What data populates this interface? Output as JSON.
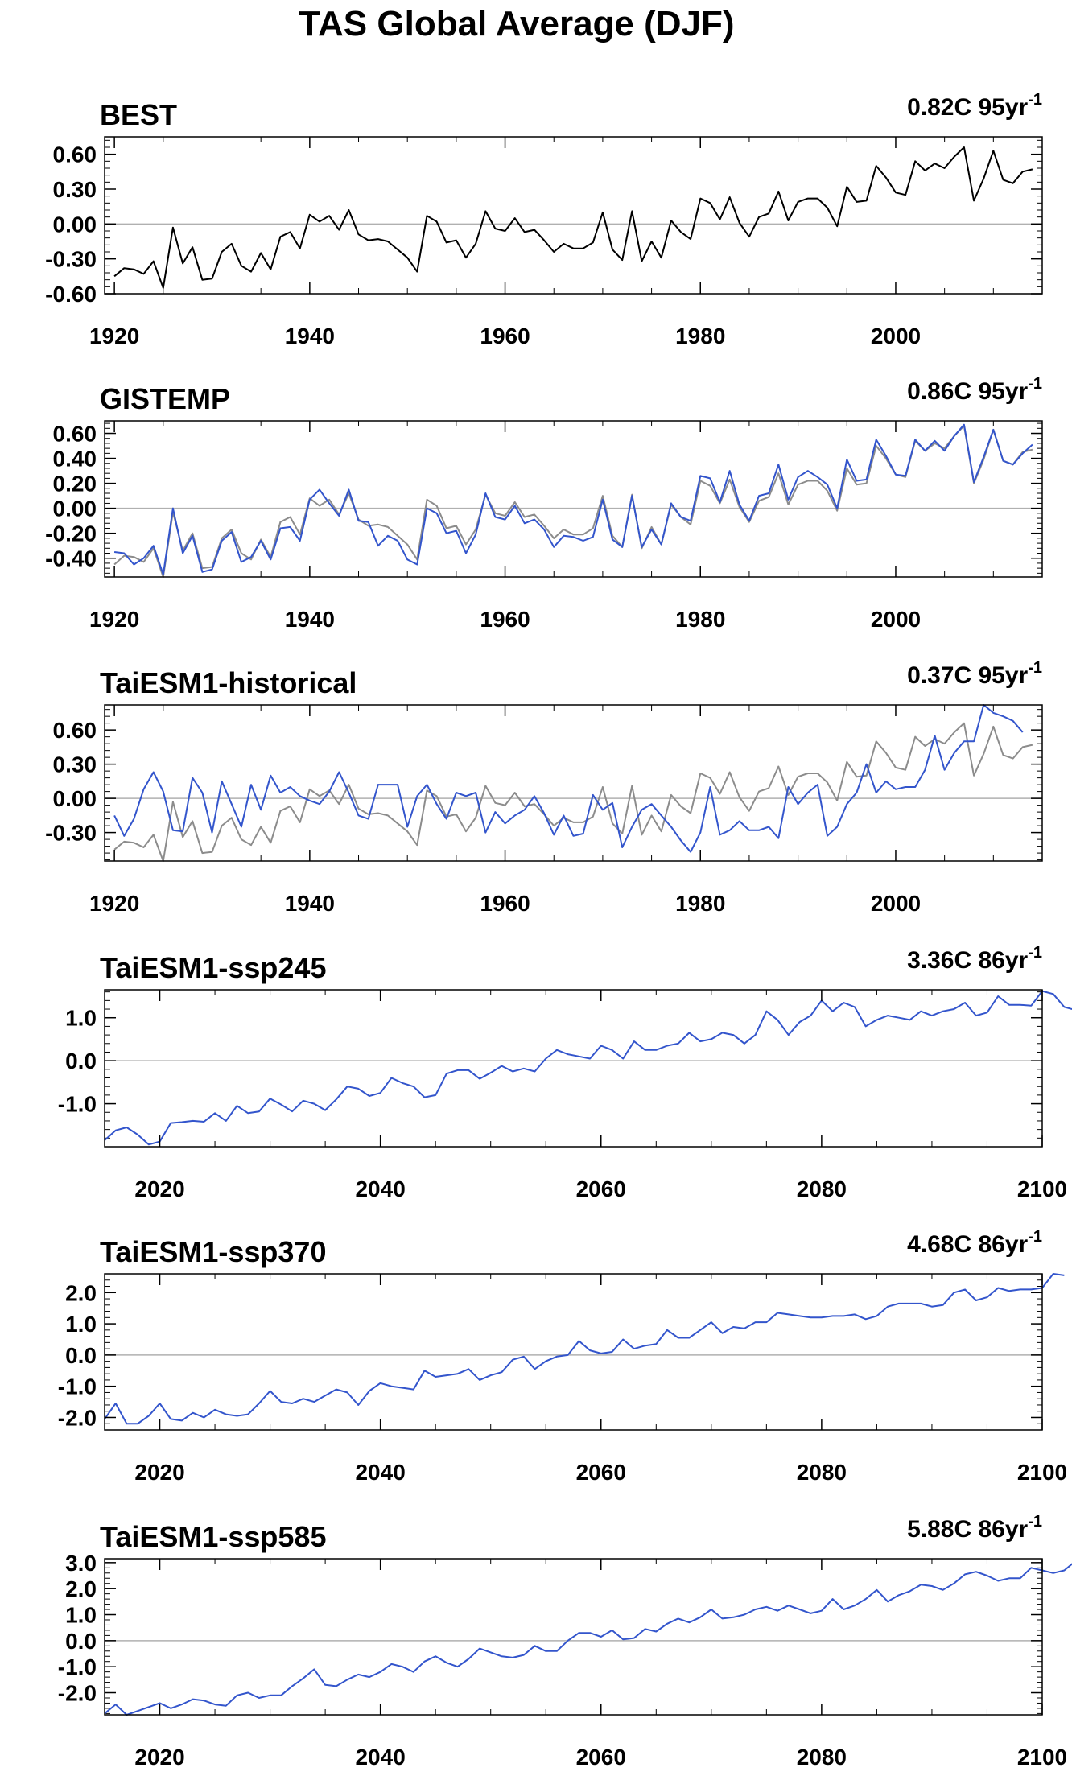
{
  "figure_title": "TAS Global Average (DJF)",
  "colors": {
    "observed": "#000000",
    "obs_background": "#8c8c8c",
    "model": "#3355cc",
    "zero_line": "#b0b0b0",
    "frame": "#000000"
  },
  "chart_data": [
    {
      "type": "line",
      "title": "BEST",
      "trend_text": "0.82C 95yr",
      "trend_exp": "-1",
      "xlabel": "",
      "ylabel": "",
      "xlim": [
        1919,
        2015
      ],
      "ylim": [
        -0.6,
        0.75
      ],
      "xticks": [
        1920,
        1940,
        1960,
        1980,
        2000
      ],
      "yticks": [
        0.6,
        0.3,
        0.0,
        -0.3,
        -0.6
      ],
      "ytick_labels": [
        "0.60",
        "0.30",
        "0.00",
        "-0.30",
        "-0.60"
      ],
      "x_start": 1920,
      "grid": false,
      "series": [
        {
          "color": "#000000",
          "values": [
            -0.45,
            -0.38,
            -0.39,
            -0.43,
            -0.32,
            -0.55,
            -0.03,
            -0.34,
            -0.2,
            -0.48,
            -0.47,
            -0.24,
            -0.17,
            -0.36,
            -0.41,
            -0.25,
            -0.39,
            -0.11,
            -0.07,
            -0.21,
            0.08,
            0.02,
            0.07,
            -0.05,
            0.12,
            -0.09,
            -0.14,
            -0.13,
            -0.15,
            -0.22,
            -0.29,
            -0.41,
            0.07,
            0.02,
            -0.16,
            -0.14,
            -0.29,
            -0.17,
            0.11,
            -0.04,
            -0.06,
            0.05,
            -0.07,
            -0.05,
            -0.14,
            -0.24,
            -0.17,
            -0.21,
            -0.21,
            -0.16,
            0.1,
            -0.22,
            -0.31,
            0.11,
            -0.32,
            -0.15,
            -0.29,
            0.03,
            -0.07,
            -0.13,
            0.22,
            0.18,
            0.04,
            0.23,
            0.01,
            -0.11,
            0.06,
            0.09,
            0.28,
            0.03,
            0.19,
            0.22,
            0.22,
            0.14,
            -0.02,
            0.32,
            0.19,
            0.2,
            0.5,
            0.4,
            0.27,
            0.25,
            0.54,
            0.46,
            0.52,
            0.48,
            0.58,
            0.66,
            0.2,
            0.39,
            0.63,
            0.38,
            0.35,
            0.45,
            0.47
          ]
        }
      ]
    },
    {
      "type": "line",
      "title": "GISTEMP",
      "trend_text": "0.86C 95yr",
      "trend_exp": "-1",
      "xlabel": "",
      "ylabel": "",
      "xlim": [
        1919,
        2015
      ],
      "ylim": [
        -0.55,
        0.7
      ],
      "xticks": [
        1920,
        1940,
        1960,
        1980,
        2000
      ],
      "yticks": [
        0.6,
        0.4,
        0.2,
        0.0,
        -0.2,
        -0.4
      ],
      "ytick_labels": [
        "0.60",
        "0.40",
        "0.20",
        "0.00",
        "-0.20",
        "-0.40"
      ],
      "x_start": 1920,
      "grid": false,
      "series": [
        {
          "color": "#8c8c8c",
          "values": [
            -0.45,
            -0.38,
            -0.39,
            -0.43,
            -0.32,
            -0.55,
            -0.03,
            -0.34,
            -0.2,
            -0.48,
            -0.47,
            -0.24,
            -0.17,
            -0.36,
            -0.41,
            -0.25,
            -0.39,
            -0.11,
            -0.07,
            -0.21,
            0.08,
            0.02,
            0.07,
            -0.05,
            0.12,
            -0.09,
            -0.14,
            -0.13,
            -0.15,
            -0.22,
            -0.29,
            -0.41,
            0.07,
            0.02,
            -0.16,
            -0.14,
            -0.29,
            -0.17,
            0.11,
            -0.04,
            -0.06,
            0.05,
            -0.07,
            -0.05,
            -0.14,
            -0.24,
            -0.17,
            -0.21,
            -0.21,
            -0.16,
            0.1,
            -0.22,
            -0.31,
            0.11,
            -0.32,
            -0.15,
            -0.29,
            0.03,
            -0.07,
            -0.13,
            0.22,
            0.18,
            0.04,
            0.23,
            0.01,
            -0.11,
            0.06,
            0.09,
            0.28,
            0.03,
            0.19,
            0.22,
            0.22,
            0.14,
            -0.02,
            0.32,
            0.19,
            0.2,
            0.5,
            0.4,
            0.27,
            0.25,
            0.54,
            0.46,
            0.52,
            0.48,
            0.58,
            0.66,
            0.2,
            0.39,
            0.63,
            0.38,
            0.35,
            0.45,
            0.47
          ]
        },
        {
          "color": "#3355cc",
          "values": [
            -0.35,
            -0.36,
            -0.45,
            -0.4,
            -0.3,
            -0.53,
            0.0,
            -0.36,
            -0.22,
            -0.51,
            -0.49,
            -0.26,
            -0.19,
            -0.43,
            -0.39,
            -0.26,
            -0.41,
            -0.16,
            -0.15,
            -0.26,
            0.07,
            0.15,
            0.04,
            -0.06,
            0.15,
            -0.1,
            -0.11,
            -0.3,
            -0.22,
            -0.26,
            -0.41,
            -0.45,
            0.0,
            -0.04,
            -0.2,
            -0.18,
            -0.36,
            -0.21,
            0.12,
            -0.07,
            -0.09,
            0.02,
            -0.12,
            -0.09,
            -0.17,
            -0.31,
            -0.22,
            -0.23,
            -0.26,
            -0.23,
            0.07,
            -0.25,
            -0.31,
            0.1,
            -0.31,
            -0.17,
            -0.29,
            0.04,
            -0.07,
            -0.1,
            0.26,
            0.24,
            0.05,
            0.3,
            0.03,
            -0.1,
            0.1,
            0.12,
            0.35,
            0.07,
            0.25,
            0.3,
            0.25,
            0.19,
            0.0,
            0.39,
            0.22,
            0.23,
            0.55,
            0.42,
            0.27,
            0.26,
            0.55,
            0.46,
            0.54,
            0.46,
            0.58,
            0.67,
            0.21,
            0.41,
            0.63,
            0.38,
            0.35,
            0.44,
            0.51
          ]
        }
      ]
    },
    {
      "type": "line",
      "title": "TaiESM1-historical",
      "trend_text": "0.37C 95yr",
      "trend_exp": "-1",
      "xlabel": "",
      "ylabel": "",
      "xlim": [
        1919,
        2015
      ],
      "ylim": [
        -0.55,
        0.82
      ],
      "xticks": [
        1920,
        1940,
        1960,
        1980,
        2000
      ],
      "yticks": [
        0.6,
        0.3,
        0.0,
        -0.3
      ],
      "ytick_labels": [
        "0.60",
        "0.30",
        "0.00",
        "-0.30"
      ],
      "x_start": 1920,
      "grid": false,
      "series": [
        {
          "color": "#8c8c8c",
          "values": [
            -0.45,
            -0.38,
            -0.39,
            -0.43,
            -0.32,
            -0.55,
            -0.03,
            -0.34,
            -0.2,
            -0.48,
            -0.47,
            -0.24,
            -0.17,
            -0.36,
            -0.41,
            -0.25,
            -0.39,
            -0.11,
            -0.07,
            -0.21,
            0.08,
            0.02,
            0.07,
            -0.05,
            0.12,
            -0.09,
            -0.14,
            -0.13,
            -0.15,
            -0.22,
            -0.29,
            -0.41,
            0.07,
            0.02,
            -0.16,
            -0.14,
            -0.29,
            -0.17,
            0.11,
            -0.04,
            -0.06,
            0.05,
            -0.07,
            -0.05,
            -0.14,
            -0.24,
            -0.17,
            -0.21,
            -0.21,
            -0.16,
            0.1,
            -0.22,
            -0.31,
            0.11,
            -0.32,
            -0.15,
            -0.29,
            0.03,
            -0.07,
            -0.13,
            0.22,
            0.18,
            0.04,
            0.23,
            0.01,
            -0.11,
            0.06,
            0.09,
            0.28,
            0.03,
            0.19,
            0.22,
            0.22,
            0.14,
            -0.02,
            0.32,
            0.19,
            0.2,
            0.5,
            0.4,
            0.27,
            0.25,
            0.54,
            0.46,
            0.52,
            0.48,
            0.58,
            0.66,
            0.2,
            0.39,
            0.63,
            0.38,
            0.35,
            0.45,
            0.47
          ]
        },
        {
          "color": "#3355cc",
          "values": [
            -0.15,
            -0.33,
            -0.18,
            0.08,
            0.23,
            0.06,
            -0.28,
            -0.29,
            0.18,
            0.05,
            -0.3,
            0.15,
            -0.05,
            -0.25,
            0.12,
            -0.1,
            0.2,
            0.05,
            0.1,
            0.02,
            -0.02,
            -0.05,
            0.06,
            0.23,
            0.05,
            -0.15,
            -0.18,
            0.12,
            0.12,
            0.12,
            -0.25,
            0.02,
            0.12,
            -0.05,
            -0.18,
            0.05,
            0.02,
            0.05,
            -0.3,
            -0.12,
            -0.22,
            -0.15,
            -0.1,
            0.02,
            -0.13,
            -0.32,
            -0.15,
            -0.33,
            -0.31,
            0.03,
            -0.1,
            -0.04,
            -0.43,
            -0.25,
            -0.1,
            -0.05,
            -0.15,
            -0.25,
            -0.37,
            -0.47,
            -0.3,
            0.1,
            -0.32,
            -0.28,
            -0.2,
            -0.28,
            -0.28,
            -0.25,
            -0.35,
            0.1,
            -0.05,
            0.05,
            0.12,
            -0.33,
            -0.25,
            -0.05,
            0.05,
            0.3,
            0.05,
            0.15,
            0.08,
            0.1,
            0.1,
            0.25,
            0.55,
            0.25,
            0.4,
            0.5,
            0.5,
            0.82,
            0.75,
            0.72,
            0.68,
            0.58
          ]
        }
      ]
    },
    {
      "type": "line",
      "title": "TaiESM1-ssp245",
      "trend_text": "3.36C 86yr",
      "trend_exp": "-1",
      "xlabel": "",
      "ylabel": "",
      "xlim": [
        2015,
        2100
      ],
      "ylim": [
        -2.0,
        1.65
      ],
      "xticks": [
        2020,
        2040,
        2060,
        2080,
        2100
      ],
      "yticks": [
        1.0,
        0.0,
        -1.0
      ],
      "ytick_labels": [
        "1.0",
        "0.0",
        "-1.0"
      ],
      "x_start": 2015,
      "grid": false,
      "series": [
        {
          "color": "#3355cc",
          "values": [
            -1.85,
            -1.62,
            -1.55,
            -1.72,
            -1.95,
            -1.88,
            -1.45,
            -1.43,
            -1.4,
            -1.42,
            -1.22,
            -1.4,
            -1.05,
            -1.22,
            -1.18,
            -0.88,
            -1.02,
            -1.18,
            -0.93,
            -1.0,
            -1.15,
            -0.9,
            -0.6,
            -0.65,
            -0.82,
            -0.75,
            -0.4,
            -0.52,
            -0.6,
            -0.85,
            -0.8,
            -0.3,
            -0.22,
            -0.22,
            -0.42,
            -0.28,
            -0.12,
            -0.25,
            -0.18,
            -0.25,
            0.05,
            0.25,
            0.15,
            0.1,
            0.05,
            0.35,
            0.25,
            0.05,
            0.45,
            0.25,
            0.25,
            0.35,
            0.4,
            0.65,
            0.45,
            0.5,
            0.65,
            0.6,
            0.4,
            0.6,
            1.15,
            0.95,
            0.6,
            0.9,
            1.05,
            1.4,
            1.15,
            1.35,
            1.25,
            0.8,
            0.95,
            1.05,
            1.0,
            0.95,
            1.15,
            1.05,
            1.15,
            1.2,
            1.35,
            1.05,
            1.12,
            1.5,
            1.3,
            1.3,
            1.28,
            1.62,
            1.55,
            1.25,
            1.18
          ]
        }
      ]
    },
    {
      "type": "line",
      "title": "TaiESM1-ssp370",
      "trend_text": "4.68C 86yr",
      "trend_exp": "-1",
      "xlabel": "",
      "ylabel": "",
      "xlim": [
        2015,
        2100
      ],
      "ylim": [
        -2.4,
        2.6
      ],
      "xticks": [
        2020,
        2040,
        2060,
        2080,
        2100
      ],
      "yticks": [
        2.0,
        1.0,
        0.0,
        -1.0,
        -2.0
      ],
      "ytick_labels": [
        "2.0",
        "1.0",
        "0.0",
        "-1.0",
        "-2.0"
      ],
      "x_start": 2015,
      "grid": false,
      "series": [
        {
          "color": "#3355cc",
          "values": [
            -2.05,
            -1.55,
            -2.2,
            -2.2,
            -1.95,
            -1.55,
            -2.05,
            -2.1,
            -1.85,
            -2.0,
            -1.75,
            -1.9,
            -1.95,
            -1.9,
            -1.55,
            -1.15,
            -1.5,
            -1.55,
            -1.4,
            -1.5,
            -1.3,
            -1.1,
            -1.2,
            -1.6,
            -1.15,
            -0.9,
            -1.0,
            -1.05,
            -1.1,
            -0.5,
            -0.7,
            -0.65,
            -0.6,
            -0.45,
            -0.8,
            -0.65,
            -0.55,
            -0.15,
            -0.05,
            -0.45,
            -0.2,
            -0.05,
            0.0,
            0.45,
            0.15,
            0.05,
            0.1,
            0.5,
            0.2,
            0.3,
            0.35,
            0.8,
            0.55,
            0.55,
            0.8,
            1.05,
            0.7,
            0.9,
            0.85,
            1.05,
            1.05,
            1.35,
            1.3,
            1.25,
            1.2,
            1.2,
            1.25,
            1.25,
            1.3,
            1.15,
            1.25,
            1.55,
            1.65,
            1.65,
            1.65,
            1.55,
            1.6,
            2.0,
            2.1,
            1.75,
            1.85,
            2.15,
            2.05,
            2.1,
            2.1,
            2.15,
            2.6,
            2.55
          ]
        }
      ]
    },
    {
      "type": "line",
      "title": "TaiESM1-ssp585",
      "trend_text": "5.88C 86yr",
      "trend_exp": "-1",
      "xlabel": "",
      "ylabel": "",
      "xlim": [
        2015,
        2100
      ],
      "ylim": [
        -2.85,
        3.15
      ],
      "xticks": [
        2020,
        2040,
        2060,
        2080,
        2100
      ],
      "yticks": [
        3.0,
        2.0,
        1.0,
        0.0,
        -1.0,
        -2.0
      ],
      "ytick_labels": [
        "3.0",
        "2.0",
        "1.0",
        "0.0",
        "-1.0",
        "-2.0"
      ],
      "x_start": 2015,
      "grid": false,
      "series": [
        {
          "color": "#3355cc",
          "values": [
            -2.8,
            -2.45,
            -2.85,
            -2.7,
            -2.55,
            -2.4,
            -2.6,
            -2.45,
            -2.25,
            -2.3,
            -2.45,
            -2.5,
            -2.1,
            -2.0,
            -2.2,
            -2.1,
            -2.1,
            -1.75,
            -1.45,
            -1.1,
            -1.7,
            -1.75,
            -1.5,
            -1.3,
            -1.4,
            -1.2,
            -0.9,
            -1.0,
            -1.2,
            -0.8,
            -0.6,
            -0.85,
            -1.0,
            -0.7,
            -0.3,
            -0.45,
            -0.6,
            -0.65,
            -0.55,
            -0.2,
            -0.4,
            -0.4,
            0.0,
            0.3,
            0.3,
            0.15,
            0.4,
            0.05,
            0.1,
            0.45,
            0.35,
            0.65,
            0.85,
            0.7,
            0.9,
            1.2,
            0.85,
            0.9,
            1.0,
            1.2,
            1.3,
            1.15,
            1.35,
            1.2,
            1.05,
            1.15,
            1.6,
            1.2,
            1.35,
            1.6,
            1.95,
            1.5,
            1.75,
            1.9,
            2.15,
            2.1,
            1.95,
            2.2,
            2.55,
            2.65,
            2.5,
            2.3,
            2.4,
            2.4,
            2.8,
            2.7,
            2.6,
            2.7,
            3.05
          ]
        }
      ]
    }
  ]
}
